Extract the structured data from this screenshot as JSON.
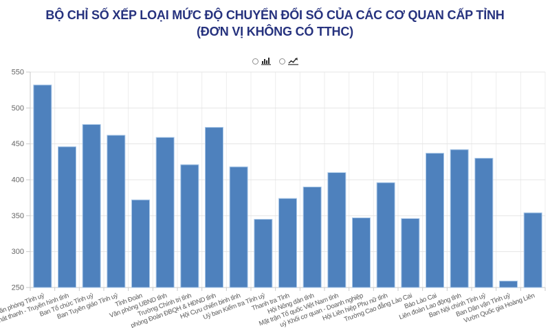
{
  "title": {
    "line1": "BỘ CHỈ SỐ XẾP LOẠI MỨC ĐỘ CHUYỂN ĐỔI SỐ CỦA CÁC CƠ QUAN CẤP TỈNH",
    "line2": "(ĐƠN VỊ KHÔNG CÓ TTHC)",
    "color": "#26327e"
  },
  "controls": {
    "options": [
      {
        "icon": "bar-chart-icon",
        "checked": false
      },
      {
        "icon": "line-chart-icon",
        "checked": false
      }
    ]
  },
  "chart_data": {
    "type": "bar",
    "title": "BỘ CHỈ SỐ XẾP LOẠI MỨC ĐỘ CHUYỂN ĐỔI SỐ CỦA CÁC CƠ QUAN CẤP TỈNH (ĐƠN VỊ KHÔNG CÓ TTHC)",
    "categories": [
      "Văn phòng Tỉnh uỷ",
      "Phát thanh - Truyền hình tỉnh",
      "Ban Tổ chức Tỉnh uỷ",
      "Ban Tuyên giáo Tỉnh uỷ",
      "Tỉnh Đoàn",
      "Văn phòng UBND tỉnh",
      "Trường Chính trị tỉnh",
      "phòng Đoàn ĐBQH & HĐND tỉnh",
      "Hội Cựu chiến binh tỉnh",
      "Uỷ ban Kiểm tra Tỉnh uỷ",
      "Thanh tra Tỉnh",
      "Hội Nông dân tỉnh",
      "Mặt trận Tổ quốc Việt Nam tỉnh",
      "uỷ Khối cơ quan - Doanh nghiệp",
      "Hội Liên hiệp Phụ nữ tỉnh",
      "Trường Cao đẳng Lào Cai",
      "Báo Lào Cai",
      "Liên đoàn Lao động tỉnh",
      "Ban Nội chính Tỉnh uỷ",
      "Ban Dân vận Tỉnh uỷ",
      "Vườn Quốc gia Hoàng Liên"
    ],
    "values": [
      532,
      446,
      477,
      462,
      372,
      459,
      421,
      473,
      418,
      345,
      374,
      390,
      410,
      347,
      396,
      346,
      437,
      442,
      430,
      259,
      354
    ],
    "xlabel": "",
    "ylabel": "",
    "ylim": [
      250,
      550
    ],
    "yticks": [
      250,
      300,
      350,
      400,
      450,
      500,
      550
    ],
    "grid": true,
    "legend": "none",
    "bar_color": "#4e81bd",
    "bar_border_color": "#aac8e8",
    "grid_color_h": "#e4e4e4",
    "grid_color_v": "#ededed",
    "axis_color": "#c9c9c9",
    "ytick_label_color": "#666666",
    "xtick_label_color": "#595959"
  }
}
